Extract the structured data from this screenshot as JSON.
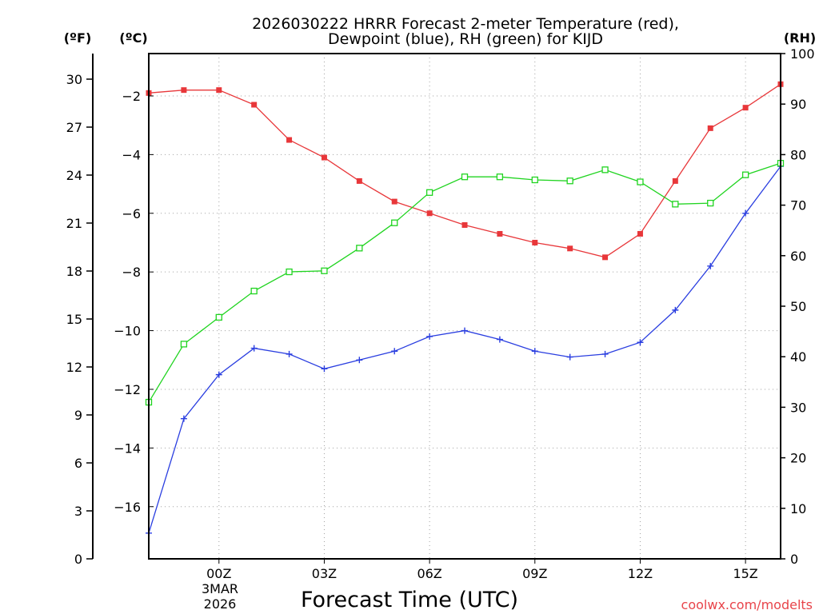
{
  "chart_data": {
    "type": "line",
    "title": [
      "2026030222 HRRR Forecast 2-meter Temperature (red),",
      "Dewpoint (blue), RH (green) for KIJD"
    ],
    "xlabel": "Forecast Time (UTC)",
    "credit": "coolwx.com/modelts",
    "date_label": [
      "3MAR",
      "2026"
    ],
    "x_hours": [
      -2,
      -1,
      0,
      1,
      2,
      3,
      4,
      5,
      6,
      7,
      8,
      9,
      10,
      11,
      12,
      13,
      14,
      15,
      16
    ],
    "x_ticks": [
      {
        "h": 0,
        "label": "00Z"
      },
      {
        "h": 3,
        "label": "03Z"
      },
      {
        "h": 6,
        "label": "06Z"
      },
      {
        "h": 9,
        "label": "09Z"
      },
      {
        "h": 12,
        "label": "12Z"
      },
      {
        "h": 15,
        "label": "15Z"
      }
    ],
    "x_range": [
      -2,
      16
    ],
    "axes": {
      "fahrenheit": {
        "unit": "(ºF)",
        "ticks": [
          0,
          3,
          6,
          9,
          12,
          15,
          18,
          21,
          24,
          27,
          30
        ]
      },
      "celsius": {
        "unit": "(ºC)",
        "ticks": [
          -16,
          -14,
          -12,
          -10,
          -8,
          -6,
          -4,
          -2
        ],
        "range": [
          -17.778,
          -0.556
        ]
      },
      "rh": {
        "unit": "(RH)",
        "ticks": [
          0,
          10,
          20,
          30,
          40,
          50,
          60,
          70,
          80,
          90,
          100
        ],
        "range": [
          0,
          100
        ]
      }
    },
    "series": [
      {
        "name": "Temperature",
        "color": "#e8373a",
        "marker": "filled-square",
        "axis": "celsius",
        "values": [
          -1.9,
          -1.8,
          -1.8,
          -2.3,
          -3.5,
          -4.1,
          -4.9,
          -5.6,
          -6.0,
          -6.4,
          -6.7,
          -7.0,
          -7.2,
          -7.5,
          -6.7,
          -4.9,
          -3.1,
          -2.4,
          -1.6
        ]
      },
      {
        "name": "Dewpoint",
        "color": "#2a3ee0",
        "marker": "plus",
        "axis": "celsius",
        "values": [
          -16.9,
          -13.0,
          -11.5,
          -10.6,
          -10.8,
          -11.3,
          -11.0,
          -10.7,
          -10.2,
          -10.0,
          -10.3,
          -10.7,
          -10.9,
          -10.8,
          -10.4,
          -9.3,
          -7.8,
          -6.0,
          -4.4
        ]
      },
      {
        "name": "RH",
        "color": "#20d420",
        "marker": "open-square",
        "axis": "rh",
        "values": [
          31,
          42.5,
          47.8,
          53,
          56.8,
          57,
          61.5,
          66.5,
          72.5,
          75.6,
          75.6,
          75,
          74.8,
          77,
          74.6,
          70.2,
          70.4,
          76,
          78.3
        ]
      }
    ]
  }
}
